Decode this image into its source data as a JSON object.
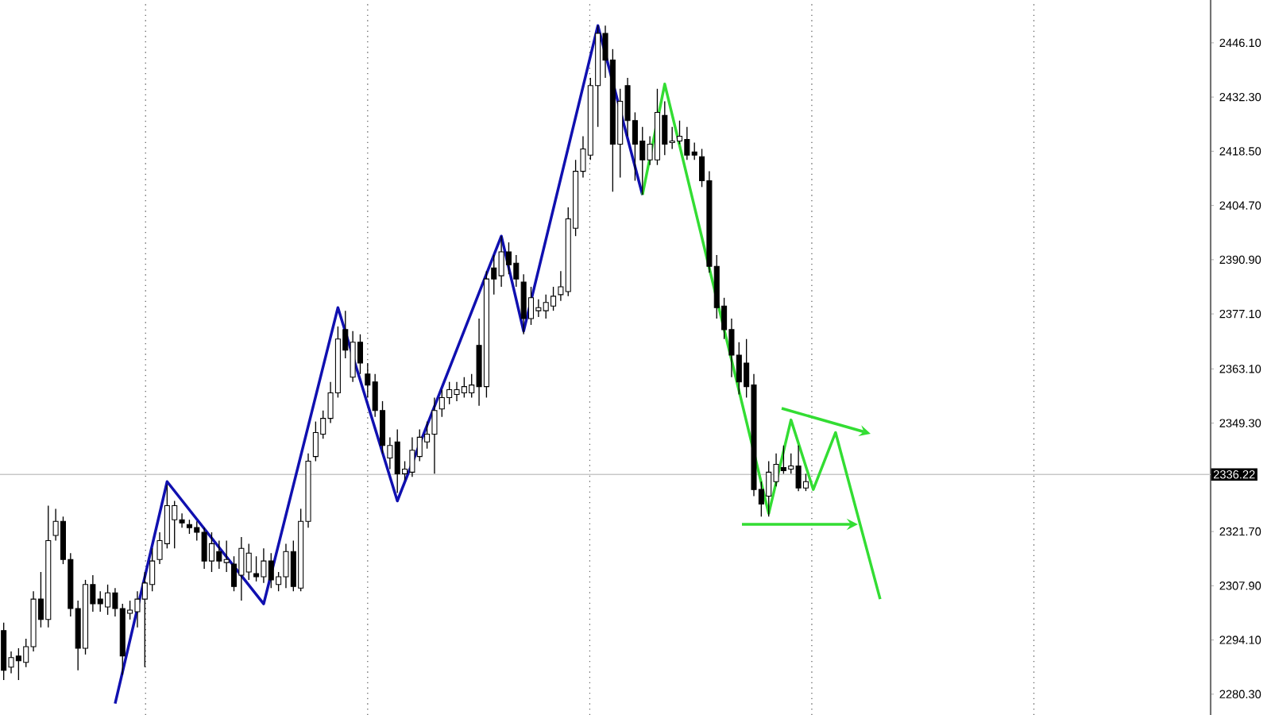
{
  "chart_data": {
    "type": "candlestick",
    "categories": [
      null,
      null,
      null,
      null,
      null,
      null,
      null,
      null,
      null,
      null,
      null,
      null,
      null,
      null,
      null,
      null,
      null,
      null,
      null,
      null,
      null,
      null,
      null,
      null,
      null,
      null,
      null,
      null,
      null,
      null,
      null,
      null,
      null,
      null,
      null,
      null,
      null,
      null,
      null,
      null,
      null,
      null,
      null,
      null,
      null,
      null,
      null,
      null,
      null,
      null,
      null,
      null,
      null,
      null,
      null,
      null,
      null,
      null,
      null,
      null,
      null,
      null,
      null,
      null,
      null,
      null,
      null,
      null,
      null,
      null,
      null,
      null,
      null,
      null,
      null,
      null,
      null,
      null,
      null,
      null,
      null,
      null,
      null,
      null,
      null,
      null,
      null,
      null,
      null,
      null,
      null,
      null,
      null,
      null,
      null,
      null,
      null,
      null,
      null,
      null,
      null,
      null,
      null,
      null,
      null,
      null,
      null,
      null,
      null,
      null,
      null,
      null,
      null,
      null,
      null,
      null,
      null,
      null,
      null,
      null,
      null,
      null,
      null,
      null,
      null,
      null,
      null,
      null,
      null,
      null,
      null,
      null,
      null,
      null,
      null,
      null,
      null,
      null,
      null,
      null,
      null,
      null,
      null,
      null,
      null,
      null,
      null,
      null,
      null,
      null,
      null,
      null,
      null,
      null,
      null,
      null,
      null,
      null,
      null,
      null,
      null,
      null,
      null
    ],
    "color": "#000000",
    "ohlc": [
      [
        2296.5,
        2298.5,
        2283.9,
        2286.4
      ],
      [
        2287.2,
        2291.2,
        2285.6,
        2289.6
      ],
      [
        2290.0,
        2292.0,
        2283.9,
        2288.8
      ],
      [
        2288.4,
        2294.4,
        2287.2,
        2292.4
      ],
      [
        2292.4,
        2306.5,
        2291.2,
        2304.5
      ],
      [
        2304.5,
        2311.4,
        2297.3,
        2299.3
      ],
      [
        2299.3,
        2328.3,
        2297.3,
        2319.4
      ],
      [
        2320.7,
        2327.5,
        2319.4,
        2324.3
      ],
      [
        2324.3,
        2325.5,
        2313.4,
        2314.6
      ],
      [
        2314.6,
        2316.2,
        2300.1,
        2302.1
      ],
      [
        2302.1,
        2304.1,
        2286.4,
        2292.0
      ],
      [
        2292.0,
        2309.4,
        2290.4,
        2308.2
      ],
      [
        2308.2,
        2310.6,
        2301.3,
        2303.3
      ],
      [
        2304.5,
        2306.5,
        2301.3,
        2303.3
      ],
      [
        2302.5,
        2308.2,
        2300.5,
        2306.1
      ],
      [
        2306.1,
        2307.3,
        2300.1,
        2302.1
      ],
      [
        2302.1,
        2303.3,
        2285.2,
        2290.0
      ],
      [
        2300.9,
        2304.1,
        2299.3,
        2301.7
      ],
      [
        2301.3,
        2306.5,
        2297.3,
        2304.5
      ],
      [
        2304.5,
        2311.4,
        2287.2,
        2308.6
      ],
      [
        2308.2,
        2317.4,
        2306.5,
        2314.2
      ],
      [
        2314.6,
        2321.5,
        2313.4,
        2319.4
      ],
      [
        2318.6,
        2333.6,
        2317.4,
        2328.3
      ],
      [
        2324.7,
        2329.5,
        2317.4,
        2328.3
      ],
      [
        2324.7,
        2326.3,
        2322.7,
        2323.9
      ],
      [
        2323.5,
        2324.7,
        2321.1,
        2322.7
      ],
      [
        2322.7,
        2324.3,
        2319.4,
        2321.5
      ],
      [
        2321.5,
        2322.7,
        2312.2,
        2314.2
      ],
      [
        2314.2,
        2321.5,
        2311.4,
        2318.6
      ],
      [
        2316.6,
        2319.4,
        2312.2,
        2314.2
      ],
      [
        2313.8,
        2319.4,
        2311.4,
        2314.6
      ],
      [
        2313.4,
        2315.4,
        2306.5,
        2307.7
      ],
      [
        2310.6,
        2320.3,
        2304.1,
        2317.4
      ],
      [
        2311.4,
        2318.6,
        2309.4,
        2316.2
      ],
      [
        2311.0,
        2315.4,
        2309.0,
        2310.2
      ],
      [
        2310.2,
        2317.4,
        2308.6,
        2314.2
      ],
      [
        2314.2,
        2316.2,
        2307.3,
        2309.4
      ],
      [
        2308.2,
        2311.4,
        2306.5,
        2310.2
      ],
      [
        2310.2,
        2318.6,
        2307.3,
        2316.6
      ],
      [
        2316.6,
        2319.4,
        2306.5,
        2307.7
      ],
      [
        2307.3,
        2327.5,
        2306.5,
        2324.3
      ],
      [
        2324.3,
        2341.6,
        2322.7,
        2339.6
      ],
      [
        2340.8,
        2349.7,
        2339.6,
        2346.9
      ],
      [
        2346.5,
        2352.5,
        2345.3,
        2350.5
      ],
      [
        2350.5,
        2359.8,
        2349.3,
        2357.0
      ],
      [
        2357.0,
        2373.9,
        2355.8,
        2370.7
      ],
      [
        2373.1,
        2377.9,
        2365.8,
        2367.9
      ],
      [
        2361.0,
        2372.7,
        2359.8,
        2369.9
      ],
      [
        2369.9,
        2371.9,
        2361.8,
        2364.6
      ],
      [
        2361.8,
        2364.6,
        2355.8,
        2359.0
      ],
      [
        2359.8,
        2361.8,
        2350.9,
        2352.5
      ],
      [
        2352.5,
        2354.9,
        2341.6,
        2343.6
      ],
      [
        2340.4,
        2345.7,
        2337.6,
        2343.6
      ],
      [
        2344.5,
        2347.7,
        2331.5,
        2336.4
      ],
      [
        2336.4,
        2339.6,
        2334.8,
        2337.6
      ],
      [
        2336.8,
        2345.7,
        2335.6,
        2342.4
      ],
      [
        2340.8,
        2347.7,
        2339.6,
        2345.7
      ],
      [
        2344.5,
        2349.7,
        2342.8,
        2346.5
      ],
      [
        2346.5,
        2355.8,
        2336.4,
        2352.5
      ],
      [
        2352.9,
        2357.8,
        2350.9,
        2355.8
      ],
      [
        2355.8,
        2359.8,
        2354.1,
        2357.8
      ],
      [
        2356.6,
        2359.8,
        2354.9,
        2357.8
      ],
      [
        2357.0,
        2361.0,
        2355.8,
        2358.6
      ],
      [
        2357.0,
        2361.8,
        2355.8,
        2359.0
      ],
      [
        2369.1,
        2375.9,
        2353.7,
        2358.6
      ],
      [
        2358.6,
        2388.0,
        2355.8,
        2386.0
      ],
      [
        2388.8,
        2392.1,
        2382.0,
        2386.0
      ],
      [
        2386.8,
        2396.9,
        2384.0,
        2392.9
      ],
      [
        2392.9,
        2395.3,
        2387.2,
        2389.6
      ],
      [
        2390.0,
        2392.1,
        2384.0,
        2386.0
      ],
      [
        2385.2,
        2387.2,
        2371.9,
        2375.9
      ],
      [
        2375.9,
        2384.0,
        2374.3,
        2381.2
      ],
      [
        2377.9,
        2380.8,
        2376.3,
        2378.7
      ],
      [
        2377.9,
        2382.0,
        2375.9,
        2380.0
      ],
      [
        2379.1,
        2384.0,
        2377.9,
        2381.6
      ],
      [
        2382.0,
        2388.0,
        2380.4,
        2384.0
      ],
      [
        2382.8,
        2404.2,
        2381.6,
        2401.3
      ],
      [
        2398.9,
        2416.3,
        2396.9,
        2413.4
      ],
      [
        2413.4,
        2422.3,
        2411.8,
        2419.1
      ],
      [
        2417.5,
        2437.2,
        2416.3,
        2435.2
      ],
      [
        2435.2,
        2450.5,
        2424.7,
        2448.5
      ],
      [
        2448.5,
        2450.5,
        2437.2,
        2441.7
      ],
      [
        2441.7,
        2444.5,
        2408.2,
        2420.3
      ],
      [
        2420.3,
        2434.4,
        2411.8,
        2431.2
      ],
      [
        2435.2,
        2437.2,
        2422.3,
        2426.3
      ],
      [
        2426.3,
        2428.4,
        2411.0,
        2420.3
      ],
      [
        2421.1,
        2424.7,
        2407.4,
        2416.3
      ],
      [
        2416.3,
        2422.3,
        2415.0,
        2420.3
      ],
      [
        2416.3,
        2434.4,
        2415.0,
        2428.4
      ],
      [
        2427.6,
        2431.2,
        2417.5,
        2420.3
      ],
      [
        2420.7,
        2424.7,
        2419.1,
        2421.1
      ],
      [
        2421.1,
        2426.3,
        2420.3,
        2422.3
      ],
      [
        2421.5,
        2424.7,
        2416.3,
        2417.5
      ],
      [
        2418.3,
        2420.7,
        2416.3,
        2417.5
      ],
      [
        2417.1,
        2419.1,
        2409.4,
        2411.0
      ],
      [
        2411.0,
        2413.4,
        2387.6,
        2389.2
      ],
      [
        2389.2,
        2392.1,
        2375.9,
        2378.7
      ],
      [
        2379.1,
        2381.2,
        2370.7,
        2373.1
      ],
      [
        2373.1,
        2375.9,
        2361.0,
        2366.6
      ],
      [
        2366.6,
        2369.9,
        2356.6,
        2359.8
      ],
      [
        2364.6,
        2370.7,
        2355.8,
        2358.6
      ],
      [
        2359.0,
        2361.8,
        2330.7,
        2332.4
      ],
      [
        2332.4,
        2334.4,
        2325.5,
        2328.7
      ],
      [
        2330.7,
        2339.6,
        2325.5,
        2336.8
      ],
      [
        2334.4,
        2341.6,
        2333.2,
        2338.8
      ],
      [
        2338.0,
        2343.6,
        2336.4,
        2337.2
      ],
      [
        2337.6,
        2341.6,
        2336.4,
        2338.4
      ],
      [
        2338.4,
        2343.6,
        2332.0,
        2332.8
      ],
      [
        2332.8,
        2336.4,
        2332.0,
        2334.4
      ],
      null,
      null,
      null,
      null,
      null,
      null,
      null,
      null,
      null,
      null,
      null,
      null,
      null,
      null,
      null,
      null,
      null,
      null,
      null,
      null,
      null,
      null,
      null,
      null,
      null,
      null,
      null,
      null,
      null,
      null,
      null,
      null,
      null,
      null,
      null,
      null,
      null,
      null,
      null,
      null,
      null,
      null,
      null,
      null,
      null,
      null,
      null,
      null,
      null,
      null,
      null,
      null,
      null,
      null
    ],
    "series": [
      {
        "type": "line",
        "color": "#1010b0",
        "values": [
          null,
          null,
          null,
          null,
          null,
          null,
          null,
          null,
          null,
          null,
          null,
          null,
          null,
          null,
          null,
          2277.9,
          null,
          null,
          null,
          null,
          null,
          null,
          2334.4,
          null,
          null,
          null,
          null,
          null,
          null,
          null,
          null,
          null,
          null,
          null,
          null,
          2303.3,
          null,
          null,
          null,
          null,
          null,
          null,
          null,
          null,
          null,
          2378.7,
          null,
          null,
          null,
          null,
          null,
          null,
          null,
          2329.5,
          null,
          null,
          null,
          null,
          null,
          null,
          null,
          null,
          null,
          null,
          null,
          null,
          null,
          2396.9,
          null,
          null,
          2372.7,
          null,
          null,
          null,
          null,
          null,
          null,
          null,
          null,
          null,
          2450.5,
          null,
          null,
          null,
          null,
          null,
          2407.4,
          null,
          null,
          null,
          null,
          null,
          null,
          null,
          null,
          null,
          null,
          null,
          null,
          null,
          null,
          null,
          null,
          null,
          null,
          null,
          null,
          null,
          null,
          null,
          null,
          null,
          null,
          null,
          null,
          null,
          null,
          null,
          null,
          null,
          null,
          null,
          null,
          null,
          null,
          null,
          null,
          null,
          null,
          null,
          null,
          null,
          null,
          null,
          null,
          null,
          null,
          null,
          null,
          null,
          null,
          null,
          null,
          null,
          null,
          null,
          null,
          null,
          null,
          null,
          null,
          null,
          null,
          null,
          null,
          null,
          null,
          null,
          null,
          null,
          null,
          null,
          null
        ]
      },
      {
        "type": "line",
        "color": "#33dd33",
        "values": [
          null,
          null,
          null,
          null,
          null,
          null,
          null,
          null,
          null,
          null,
          null,
          null,
          null,
          null,
          null,
          null,
          null,
          null,
          null,
          null,
          null,
          null,
          null,
          null,
          null,
          null,
          null,
          null,
          null,
          null,
          null,
          null,
          null,
          null,
          null,
          null,
          null,
          null,
          null,
          null,
          null,
          null,
          null,
          null,
          null,
          null,
          null,
          null,
          null,
          null,
          null,
          null,
          null,
          null,
          null,
          null,
          null,
          null,
          null,
          null,
          null,
          null,
          null,
          null,
          null,
          null,
          null,
          null,
          null,
          null,
          null,
          null,
          null,
          null,
          null,
          null,
          null,
          null,
          null,
          null,
          null,
          null,
          null,
          null,
          null,
          null,
          2407.4,
          null,
          null,
          2435.6,
          null,
          null,
          null,
          null,
          null,
          null,
          null,
          null,
          null,
          null,
          null,
          null,
          null,
          2326.3,
          null,
          null,
          2350.1,
          null,
          null,
          2332.4,
          null,
          null,
          2346.9,
          null,
          null,
          null,
          null,
          null,
          2304.5,
          null,
          null,
          null,
          null,
          null,
          null,
          null,
          null,
          null,
          null,
          null,
          null,
          null,
          null,
          null,
          null,
          null,
          null,
          null,
          null,
          null,
          null,
          null,
          null,
          null,
          null,
          null,
          null,
          null,
          null,
          null,
          null,
          null,
          null,
          null,
          null,
          null,
          null,
          null,
          null,
          null,
          null,
          null,
          null
        ]
      }
    ],
    "ylim": [
      2275,
      2457
    ],
    "yticks": [
      {
        "value": 2446.1,
        "label": "2446.10"
      },
      {
        "value": 2432.3,
        "label": "2432.30"
      },
      {
        "value": 2418.5,
        "label": "2418.50"
      },
      {
        "value": 2404.7,
        "label": "2404.70"
      },
      {
        "value": 2390.9,
        "label": "2390.90"
      },
      {
        "value": 2377.1,
        "label": "2377.10"
      },
      {
        "value": 2363.1,
        "label": "2363.10"
      },
      {
        "value": 2349.3,
        "label": "2349.30"
      },
      {
        "value": 2321.7,
        "label": "2321.70"
      },
      {
        "value": 2307.9,
        "label": "2307.90"
      },
      {
        "value": 2294.1,
        "label": "2294.10"
      },
      {
        "value": 2280.3,
        "label": "2280.30"
      }
    ],
    "ref_lines": [
      {
        "axis": "y",
        "value": 2336.22,
        "label": "2336.22",
        "color": "#c8c8c8"
      }
    ],
    "tick_labels": "y"
  }
}
